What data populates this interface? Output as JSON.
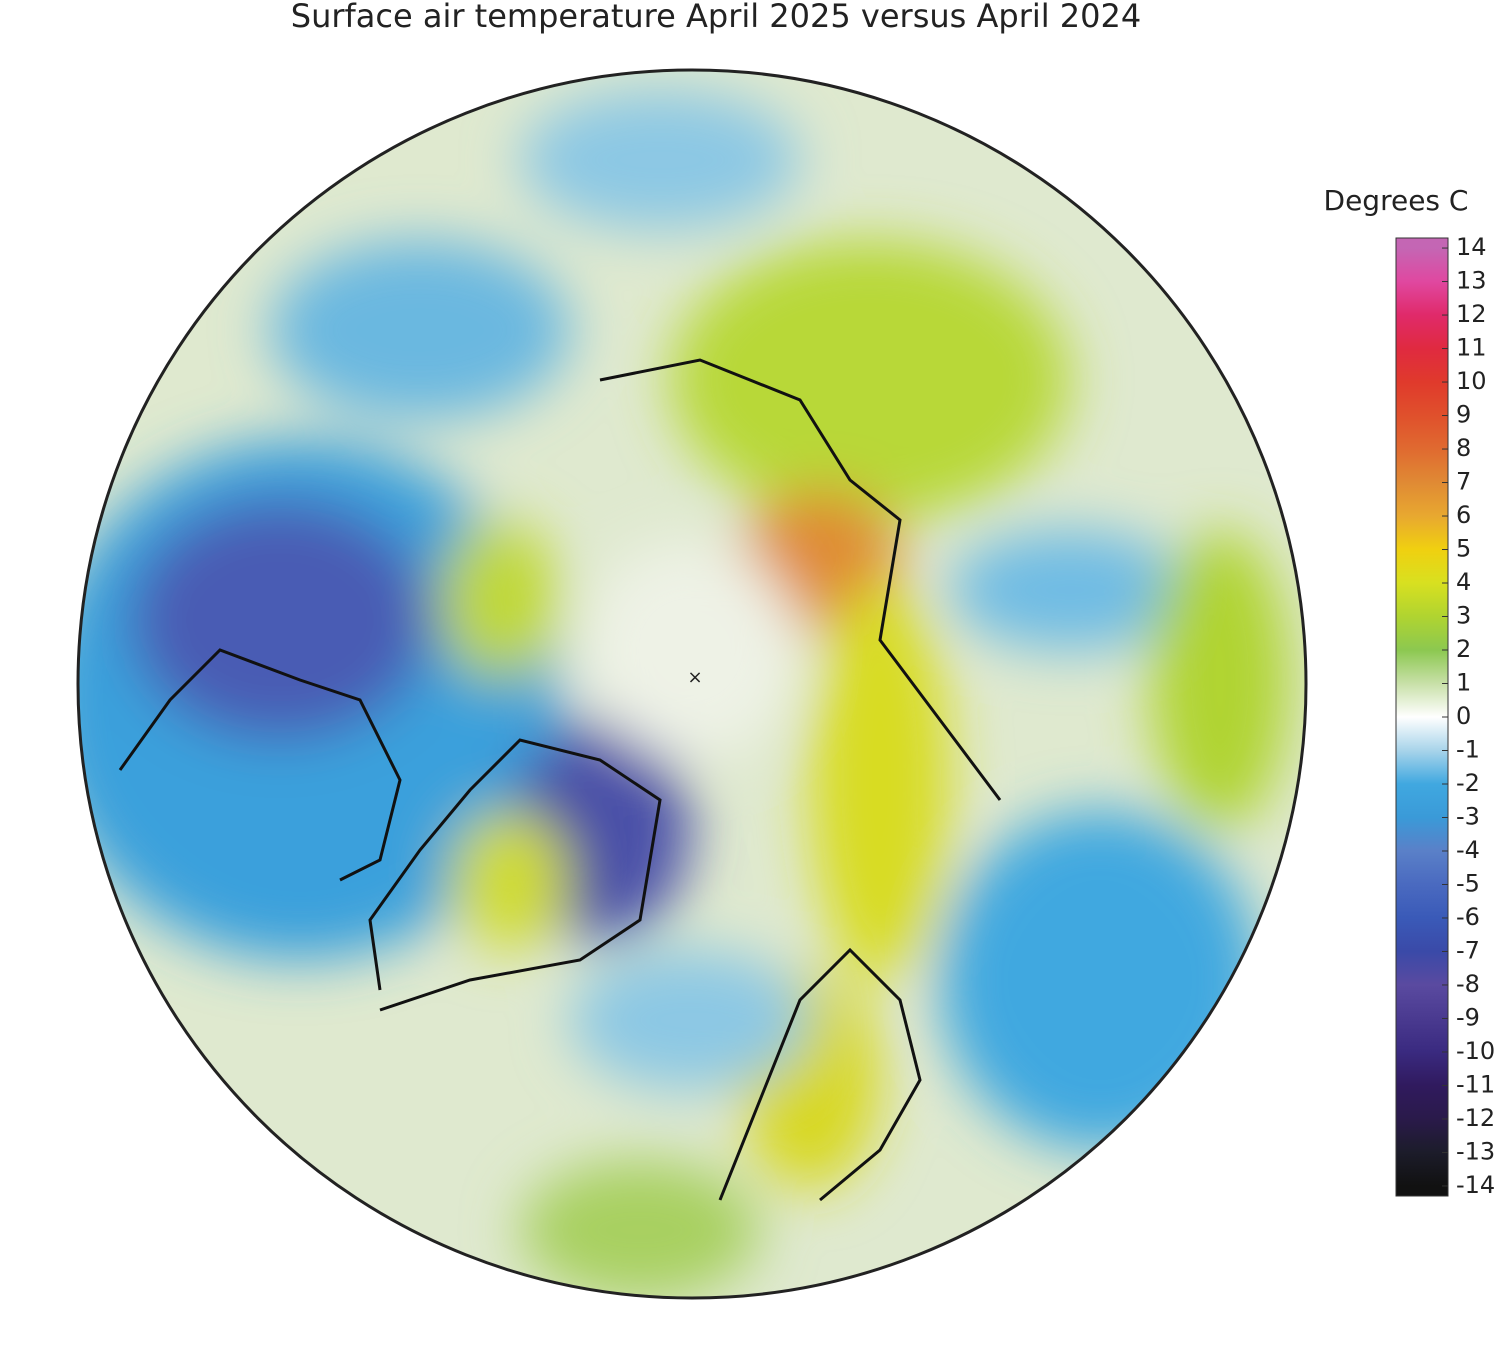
{
  "title": "Surface air temperature April 2025 versus April 2024",
  "colorbar": {
    "label": "Degrees C",
    "lim": [
      -14.3,
      14.3
    ],
    "ticks": [
      14,
      13,
      12,
      11,
      10,
      9,
      8,
      7,
      6,
      5,
      4,
      3,
      2,
      1,
      0,
      -1,
      -2,
      -3,
      -4,
      -5,
      -6,
      -7,
      -8,
      -9,
      -10,
      -11,
      -12,
      -13,
      -14
    ],
    "colors": [
      "#c466b4",
      "#e048a0",
      "#e02a6a",
      "#e02a40",
      "#e03a2c",
      "#e0502c",
      "#e06a30",
      "#e08a34",
      "#e8a830",
      "#f0d010",
      "#d8e020",
      "#b0d430",
      "#8cc850",
      "#c8e0a8",
      "#ffffff",
      "#a8d4ea",
      "#40a8e0",
      "#3a9ad8",
      "#5a80c8",
      "#4a6ac0",
      "#3a5ab8",
      "#3a4aa8",
      "#5a4aa0",
      "#4a3a90",
      "#3a2a80",
      "#301a5e",
      "#2a1a4a",
      "#1c1c2a",
      "#111111"
    ]
  }
}
